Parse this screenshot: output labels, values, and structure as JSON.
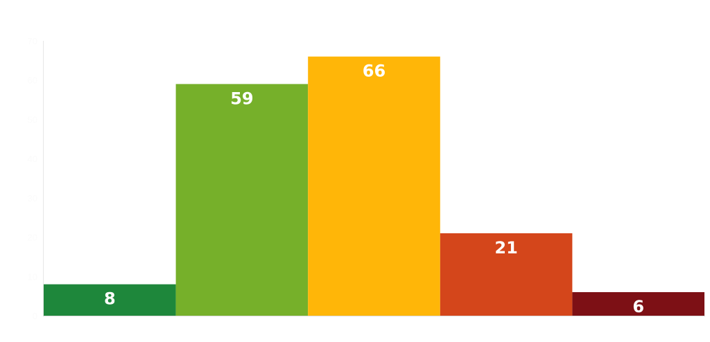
{
  "chart_data": {
    "type": "bar",
    "title": "",
    "xlabel": "",
    "ylabel": "",
    "categories": [
      "",
      "",
      "",
      "",
      ""
    ],
    "values": [
      8,
      59,
      66,
      21,
      6
    ],
    "colors": [
      "#1e873b",
      "#76b02a",
      "#ffb608",
      "#d4461b",
      "#7d1015"
    ],
    "ylim": [
      0,
      70
    ],
    "yticks": [
      0,
      10,
      20,
      30,
      40,
      50,
      60,
      70
    ],
    "grid": false,
    "legend": "none",
    "data_labels": true,
    "data_label_color": "#ffffff"
  }
}
